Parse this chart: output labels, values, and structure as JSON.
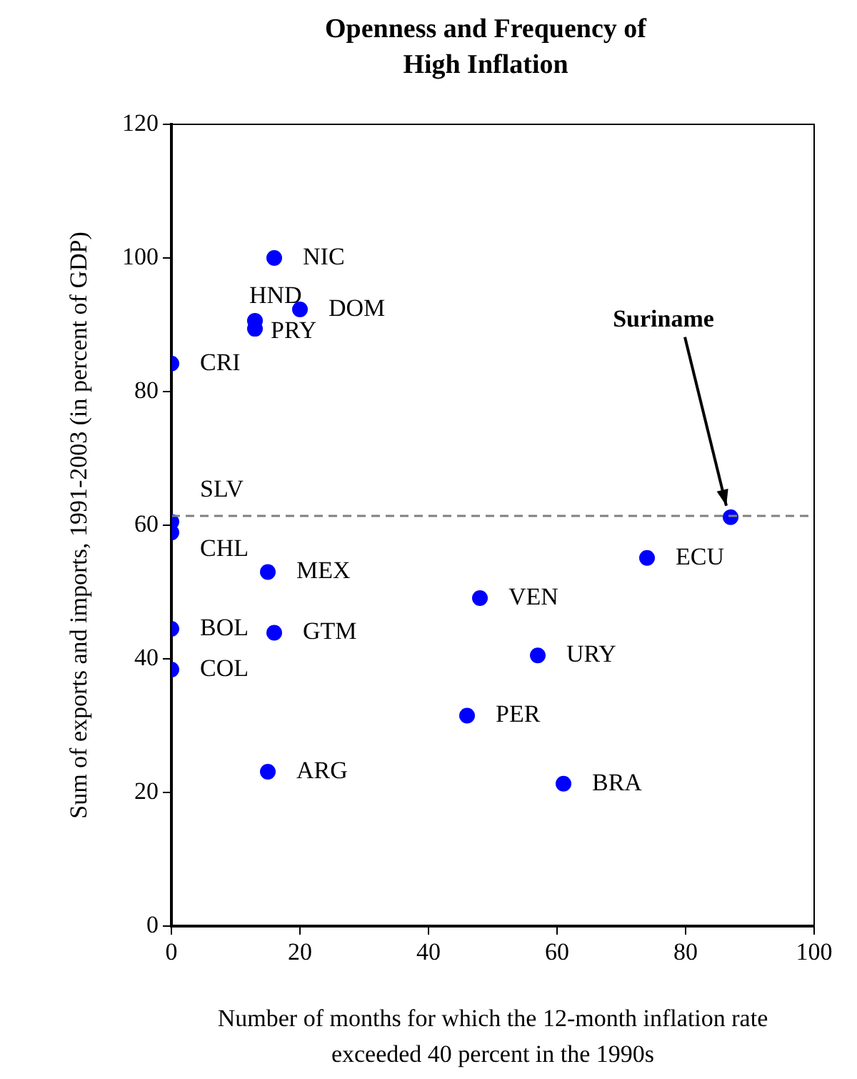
{
  "chart_data": {
    "type": "scatter",
    "title": "Openness and Frequency of High Inflation",
    "xlabel": "Number of months for which the 12-month inflation rate exceeded 40 percent in the 1990s",
    "ylabel": "Sum of exports and imports, 1991-2003 (in percent of GDP)",
    "xlim": [
      0,
      100
    ],
    "xticks": [
      0,
      20,
      40,
      60,
      80,
      100
    ],
    "ylim": [
      0,
      120
    ],
    "yticks": [
      0,
      20,
      40,
      60,
      80,
      100,
      120
    ],
    "grid": false,
    "legend": false,
    "marker": "circle",
    "series": [
      {
        "name": "CRI",
        "color": "#0000ff",
        "x": [
          0
        ],
        "values": [
          84.2
        ]
      },
      {
        "name": "NIC",
        "color": "#0000ff",
        "x": [
          16
        ],
        "values": [
          100
        ]
      },
      {
        "name": "HND",
        "color": "#0000ff",
        "x": [
          13
        ],
        "values": [
          90.6
        ]
      },
      {
        "name": "PRY",
        "color": "#0000ff",
        "x": [
          13
        ],
        "values": [
          89.4
        ]
      },
      {
        "name": "DOM",
        "color": "#0000ff",
        "x": [
          20
        ],
        "values": [
          92.3
        ]
      },
      {
        "name": "SLV",
        "color": "#0000ff",
        "x": [
          0
        ],
        "values": [
          60.5
        ]
      },
      {
        "name": "CHL",
        "color": "#0000ff",
        "x": [
          0
        ],
        "values": [
          58.9
        ]
      },
      {
        "name": "MEX",
        "color": "#0000ff",
        "x": [
          15
        ],
        "values": [
          53
        ]
      },
      {
        "name": "BOL",
        "color": "#0000ff",
        "x": [
          0
        ],
        "values": [
          44.5
        ]
      },
      {
        "name": "GTM",
        "color": "#0000ff",
        "x": [
          16
        ],
        "values": [
          43.9
        ]
      },
      {
        "name": "COL",
        "color": "#0000ff",
        "x": [
          0
        ],
        "values": [
          38.4
        ]
      },
      {
        "name": "ARG",
        "color": "#0000ff",
        "x": [
          15
        ],
        "values": [
          23.1
        ]
      },
      {
        "color": "#0000ff",
        "x": [
          87
        ],
        "values": [
          61.2
        ]
      },
      {
        "name": "ECU",
        "color": "#0000ff",
        "x": [
          74
        ],
        "values": [
          55.1
        ]
      },
      {
        "name": "VEN",
        "color": "#0000ff",
        "x": [
          48
        ],
        "values": [
          49.1
        ]
      },
      {
        "name": "URY",
        "color": "#0000ff",
        "x": [
          57
        ],
        "values": [
          40.5
        ]
      },
      {
        "name": "PER",
        "color": "#0000ff",
        "x": [
          46
        ],
        "values": [
          31.5
        ]
      },
      {
        "name": "BRA",
        "color": "#0000ff",
        "x": [
          61
        ],
        "values": [
          21.3
        ]
      }
    ],
    "ref_lines": [
      {
        "axis": "y",
        "value": 61.4,
        "color": "#808080",
        "line_style": "dashed"
      }
    ],
    "annotations": [
      {
        "text": "Suriname",
        "x": 87,
        "y": 61.2
      }
    ]
  }
}
